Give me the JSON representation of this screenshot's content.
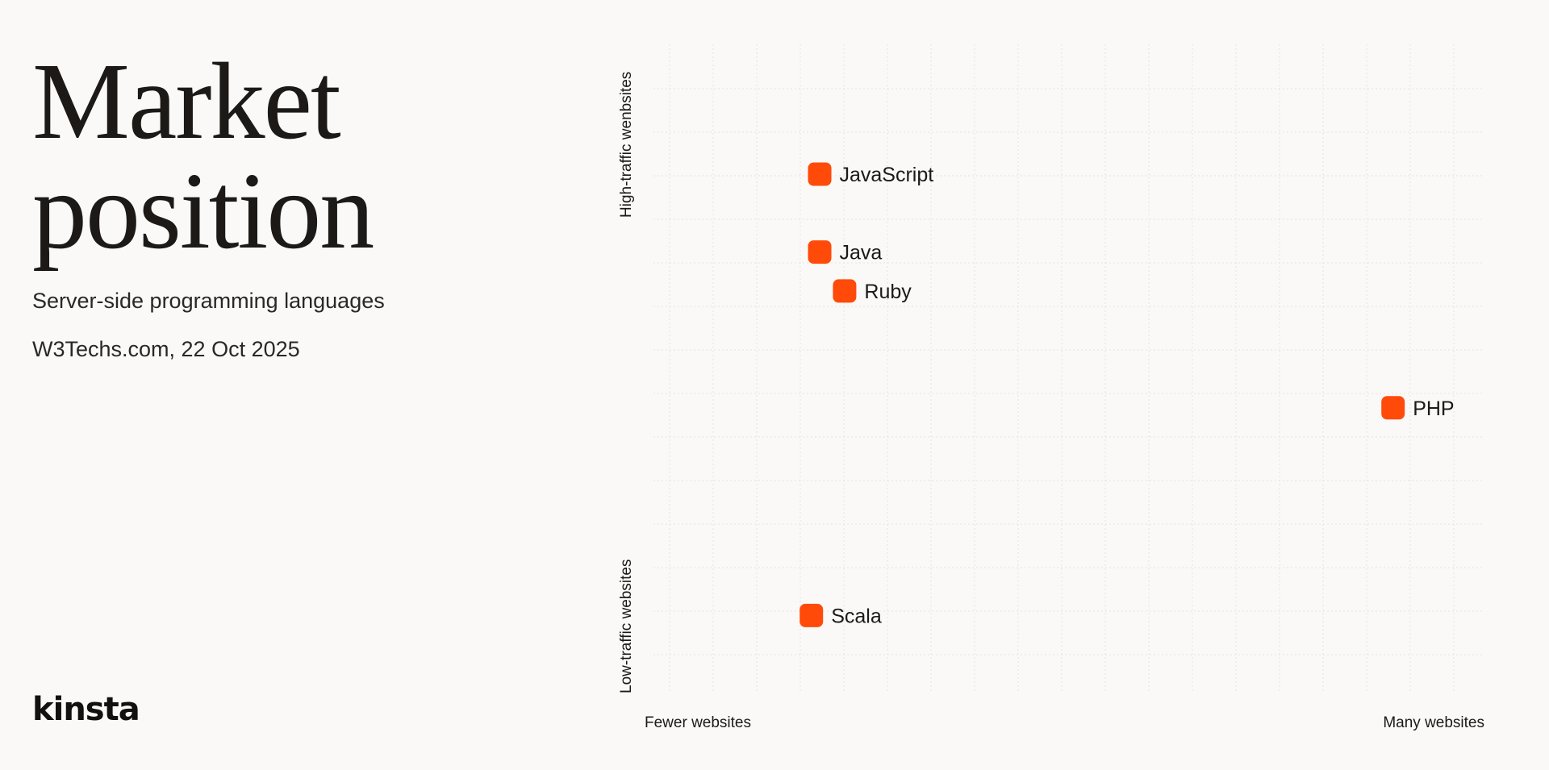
{
  "header": {
    "title_line1": "Market",
    "title_line2": "position",
    "subtitle": "Server-side programming languages",
    "source": "W3Techs.com, 22 Oct 2025"
  },
  "brand": {
    "logo_text": "kinsta"
  },
  "colors": {
    "background": "#faf9f7",
    "marker": "#ff4a0a",
    "grid": "#e6e3df",
    "text": "#1c1917"
  },
  "chart_data": {
    "type": "scatter",
    "title": "",
    "xlabel_min": "Fewer websites",
    "xlabel_max": "Many websites",
    "ylabel_min": "Low-traffic websites",
    "ylabel_max": "High-traffic wenbsites",
    "xlim": [
      0,
      1
    ],
    "ylim": [
      0,
      1
    ],
    "grid": true,
    "legend": "none",
    "points": [
      {
        "label": "JavaScript",
        "x": 0.2,
        "y": 0.8
      },
      {
        "label": "Java",
        "x": 0.2,
        "y": 0.68
      },
      {
        "label": "Ruby",
        "x": 0.23,
        "y": 0.62
      },
      {
        "label": "PHP",
        "x": 0.89,
        "y": 0.44
      },
      {
        "label": "Scala",
        "x": 0.19,
        "y": 0.12
      }
    ]
  }
}
